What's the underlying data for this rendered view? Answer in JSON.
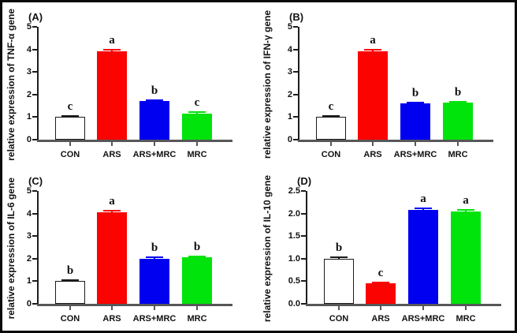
{
  "figure": {
    "background": "#ffffff",
    "border_color": "#0a0a0a",
    "axis_y_color": "#1c1c1c",
    "axis_x_color": "#57575a",
    "sig_letter_color": "#111111",
    "bar_colors": [
      "#ffffff",
      "#fb0300",
      "#0000f0",
      "#00e40c"
    ],
    "white_bar_outline": "#1b1b1b",
    "error_cap_color_white_bar": "#1b1b1b"
  },
  "chart_data": [
    {
      "type": "bar",
      "panel_label": "(A)",
      "ylabel": "relative expression of TNF-α gene",
      "categories": [
        "CON",
        "ARS",
        "ARS+MRC",
        "MRC"
      ],
      "values": [
        1.0,
        3.9,
        1.7,
        1.15
      ],
      "errors": [
        0.05,
        0.07,
        0.06,
        0.06
      ],
      "sig_letters": [
        "c",
        "a",
        "b",
        "c"
      ],
      "ylim": [
        0,
        5
      ],
      "yticks": [
        "0",
        "1",
        "2",
        "3",
        "4",
        "5"
      ],
      "bar_colors": [
        "#ffffff",
        "#fb0300",
        "#0000f0",
        "#00e40c"
      ],
      "legend": "none",
      "grid": "off"
    },
    {
      "type": "bar",
      "panel_label": "(B)",
      "ylabel": "relative expression of IFN-γ gene",
      "categories": [
        "CON",
        "ARS",
        "ARS+MRC",
        "MRC"
      ],
      "values": [
        1.0,
        3.93,
        1.6,
        1.63
      ],
      "errors": [
        0.04,
        0.06,
        0.05,
        0.05
      ],
      "sig_letters": [
        "c",
        "a",
        "b",
        "b"
      ],
      "ylim": [
        0,
        5
      ],
      "yticks": [
        "0",
        "1",
        "2",
        "3",
        "4",
        "5"
      ],
      "bar_colors": [
        "#ffffff",
        "#fb0300",
        "#0000f0",
        "#00e40c"
      ],
      "legend": "none",
      "grid": "off"
    },
    {
      "type": "bar",
      "panel_label": "(C)",
      "ylabel": "relative expression of IL-6 gene",
      "categories": [
        "CON",
        "ARS",
        "ARS+MRC",
        "MRC"
      ],
      "values": [
        1.0,
        4.05,
        2.0,
        2.05
      ],
      "errors": [
        0.04,
        0.07,
        0.05,
        0.05
      ],
      "sig_letters": [
        "b",
        "a",
        "b",
        "b"
      ],
      "ylim": [
        0,
        5
      ],
      "yticks": [
        "0",
        "1",
        "2",
        "3",
        "4",
        "5"
      ],
      "bar_colors": [
        "#ffffff",
        "#fb0300",
        "#0000f0",
        "#00e40c"
      ],
      "legend": "none",
      "grid": "off"
    },
    {
      "type": "bar",
      "panel_label": "(D)",
      "ylabel": "relative expression of IL-10 gene",
      "categories": [
        "CON",
        "ARS",
        "ARS+MRC",
        "MRC"
      ],
      "values": [
        1.0,
        0.45,
        2.08,
        2.05
      ],
      "errors": [
        0.03,
        0.03,
        0.035,
        0.03
      ],
      "sig_letters": [
        "b",
        "c",
        "a",
        "a"
      ],
      "ylim": [
        0,
        2.5
      ],
      "yticks": [
        "0.0",
        "0.5",
        "1.0",
        "1.5",
        "2.0",
        "2.5"
      ],
      "bar_colors": [
        "#ffffff",
        "#fb0300",
        "#0000f0",
        "#00e40c"
      ],
      "legend": "none",
      "grid": "off"
    }
  ]
}
